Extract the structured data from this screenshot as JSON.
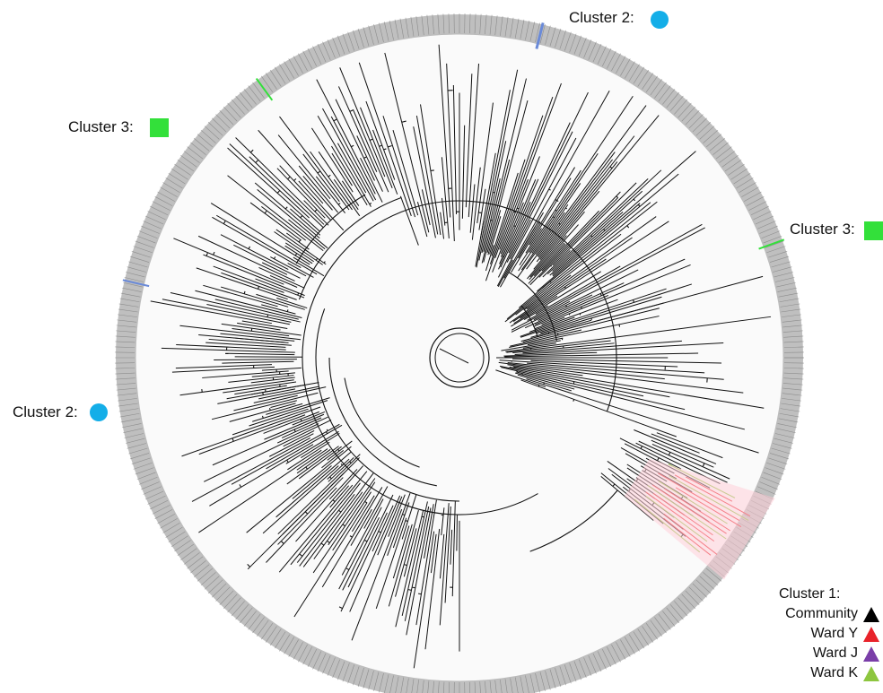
{
  "annotations": [
    {
      "label": "Cluster 2:",
      "symbol": "circle",
      "color": "#14aee8"
    },
    {
      "label": "Cluster 3:",
      "symbol": "square",
      "color": "#33e03a"
    },
    {
      "label": "Cluster 3:",
      "symbol": "square",
      "color": "#33e03a"
    },
    {
      "label": "Cluster 2:",
      "symbol": "circle",
      "color": "#14aee8"
    }
  ],
  "legend": {
    "title": "Cluster 1:",
    "items": [
      {
        "label": "Community",
        "color": "#000000",
        "symbol": "triangle"
      },
      {
        "label": "Ward Y",
        "color": "#e8232a",
        "symbol": "triangle"
      },
      {
        "label": "Ward J",
        "color": "#7a3ea8",
        "symbol": "triangle"
      },
      {
        "label": "Ward K",
        "color": "#8dc63f",
        "symbol": "triangle"
      }
    ]
  },
  "colors": {
    "ring": "#8a8a8a",
    "branches": "#111111",
    "cluster1_highlight": "#ffd0d8"
  }
}
